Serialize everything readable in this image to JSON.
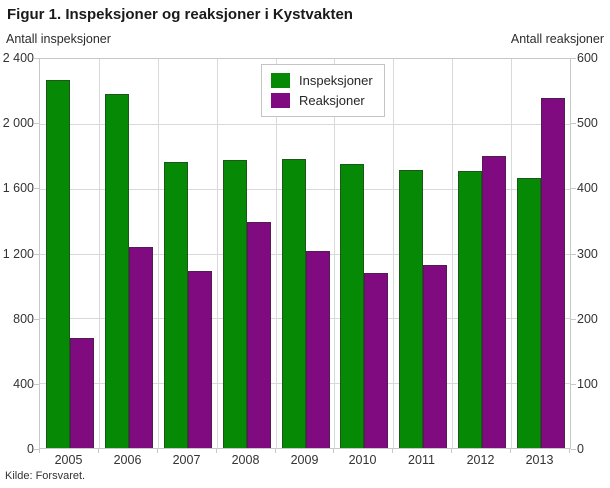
{
  "figure": {
    "title": "Figur 1. Inspeksjoner og reaksjoner i Kystvakten",
    "source": "Kilde: Forsvaret."
  },
  "chart_data": {
    "type": "bar",
    "title": "Figur 1. Inspeksjoner og reaksjoner i Kystvakten",
    "categories": [
      "2005",
      "2006",
      "2007",
      "2008",
      "2009",
      "2010",
      "2011",
      "2012",
      "2013"
    ],
    "series": [
      {
        "name": "Inspeksjoner",
        "axis": "left",
        "color": "#068a06",
        "values": [
          2270,
          2185,
          1765,
          1775,
          1780,
          1755,
          1715,
          1710,
          1665
        ]
      },
      {
        "name": "Reaksjoner",
        "axis": "right",
        "color": "#800b80",
        "values": [
          170,
          310,
          273,
          349,
          304,
          270,
          282,
          451,
          540
        ]
      }
    ],
    "left_axis": {
      "label": "Antall inspeksjoner",
      "min": 0,
      "max": 2400,
      "tick_step": 400,
      "tick_labels_top_down": [
        "2 400",
        "2 000",
        "1 600",
        "1 200",
        "800",
        "400",
        "0"
      ]
    },
    "right_axis": {
      "label": "Antall reaksjoner",
      "min": 0,
      "max": 600,
      "tick_step": 100,
      "tick_labels_top_down": [
        "600",
        "500",
        "400",
        "300",
        "200",
        "100",
        "0"
      ]
    },
    "grid": true,
    "legend_position": "top-center",
    "source": "Kilde: Forsvaret."
  }
}
